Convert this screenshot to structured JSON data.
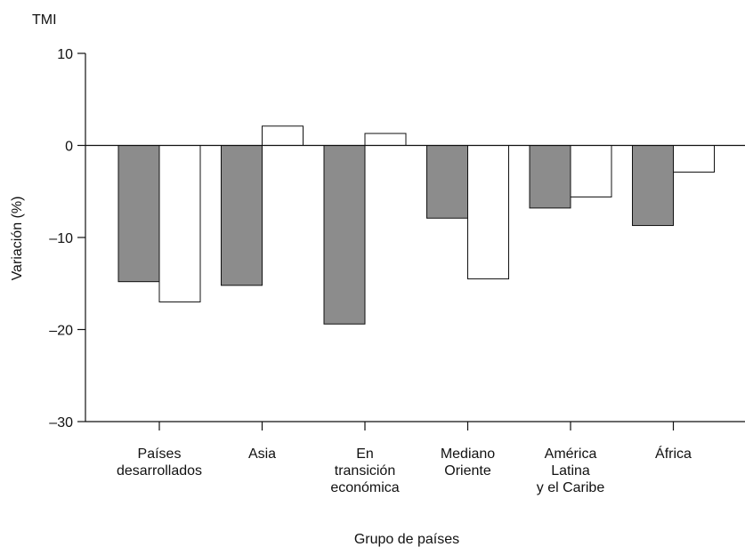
{
  "chart_data": {
    "type": "bar",
    "title": "TMI",
    "xlabel": "Grupo de países",
    "ylabel": "Variación (%)",
    "ylim": [
      -30,
      10
    ],
    "yticks": [
      "10",
      "0",
      "–10",
      "–20",
      "–30"
    ],
    "ytick_values": [
      10,
      0,
      -10,
      -20,
      -30
    ],
    "grid": false,
    "legend": "none",
    "categories": [
      [
        "Países",
        "desarrollados"
      ],
      [
        "Asia"
      ],
      [
        "En",
        "transición",
        "económica"
      ],
      [
        "Mediano",
        "Oriente"
      ],
      [
        "América",
        "Latina",
        "y el Caribe"
      ],
      [
        "África"
      ]
    ],
    "series": [
      {
        "color": "#8c8c8c",
        "values": [
          -14.8,
          -15.2,
          -19.4,
          -7.9,
          -6.8,
          -8.7
        ]
      },
      {
        "color": "#ffffff",
        "values": [
          -17.0,
          2.1,
          1.3,
          -14.5,
          -5.6,
          -2.9
        ]
      }
    ]
  }
}
